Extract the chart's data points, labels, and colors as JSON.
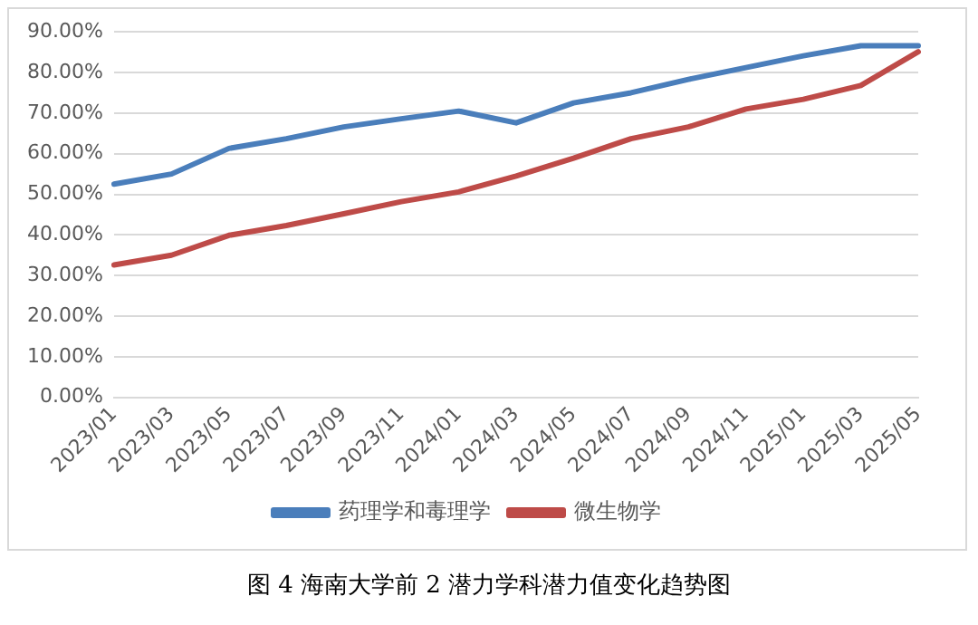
{
  "chart_data": {
    "type": "line",
    "categories": [
      "2023/01",
      "2023/03",
      "2023/05",
      "2023/07",
      "2023/09",
      "2023/11",
      "2024/01",
      "2024/03",
      "2024/05",
      "2024/07",
      "2024/09",
      "2024/11",
      "2025/01",
      "2025/03",
      "2025/05"
    ],
    "series": [
      {
        "name": "药理学和毒理学",
        "color": "#4a7ebb",
        "values": [
          52.5,
          55,
          61.3,
          63.7,
          66.6,
          68.6,
          70.5,
          67.6,
          72.5,
          75,
          78.3,
          81.2,
          84.1,
          86.6,
          86.6
        ]
      },
      {
        "name": "微生物学",
        "color": "#be4b48",
        "values": [
          32.6,
          35,
          39.9,
          42.3,
          45.2,
          48.2,
          50.6,
          54.5,
          58.9,
          63.7,
          66.6,
          71,
          73.4,
          76.8,
          85.1
        ]
      }
    ],
    "ylim": [
      0,
      90
    ],
    "yticks": [
      {
        "value": 0,
        "label": "0.00%"
      },
      {
        "value": 10,
        "label": "10.00%"
      },
      {
        "value": 20,
        "label": "20.00%"
      },
      {
        "value": 30,
        "label": "30.00%"
      },
      {
        "value": 40,
        "label": "40.00%"
      },
      {
        "value": 50,
        "label": "50.00%"
      },
      {
        "value": 60,
        "label": "60.00%"
      },
      {
        "value": 70,
        "label": "70.00%"
      },
      {
        "value": 80,
        "label": "80.00%"
      },
      {
        "value": 90,
        "label": "90.00%"
      }
    ],
    "grid": "y",
    "legend": "bottom",
    "marker": "none",
    "line_style": "solid",
    "annotations": [
      "图 4 海南大学前 2 潜力学科潜力值变化趋势图"
    ]
  }
}
